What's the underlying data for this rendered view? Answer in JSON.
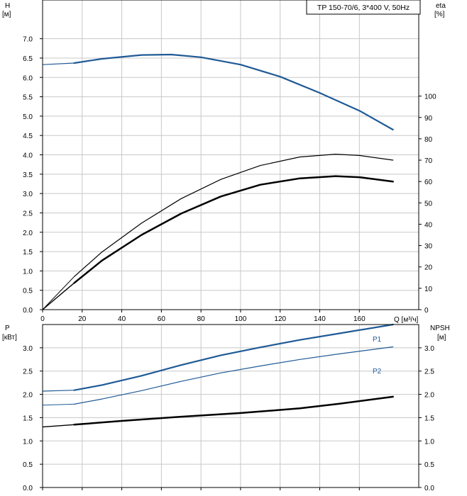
{
  "colors": {
    "blue": "#1f5a96",
    "black": "#000000",
    "grid": "#c8c8c8"
  },
  "chart_data": [
    {
      "type": "line",
      "title": "TP 150-70/6, 3*400 V, 50Hz",
      "ylabel_line1": "H",
      "ylabel_line2": "[м]",
      "y2label_line1": "eta",
      "y2label_line2": "[%]",
      "xlabel": "Q [м³/ч]",
      "xlim": [
        0,
        190
      ],
      "ylim": [
        0,
        8.0
      ],
      "y2lim": [
        0,
        145
      ],
      "xticks": [
        0,
        20,
        40,
        60,
        80,
        100,
        120,
        140,
        160
      ],
      "xtick_labels": [
        "0",
        "20",
        "40",
        "60",
        "80",
        "100",
        "120",
        "140",
        "160"
      ],
      "yticks": [
        0,
        0.5,
        1.0,
        1.5,
        2.0,
        2.5,
        3.0,
        3.5,
        4.0,
        4.5,
        5.0,
        5.5,
        6.0,
        6.5,
        7.0
      ],
      "ytick_labels": [
        "0.0",
        "0.5",
        "1.0",
        "1.5",
        "2.0",
        "2.5",
        "3.0",
        "3.5",
        "4.0",
        "4.5",
        "5.0",
        "5.5",
        "6.0",
        "6.5",
        "7.0"
      ],
      "y2ticks": [
        0,
        10,
        20,
        30,
        40,
        50,
        60,
        70,
        80,
        90,
        100
      ],
      "y2tick_labels": [
        "0",
        "10",
        "20",
        "30",
        "40",
        "50",
        "60",
        "70",
        "80",
        "90",
        "100"
      ],
      "series": [
        {
          "axis": "y",
          "color": "blue",
          "width": 2.2,
          "dashed_prefix_to": 16,
          "x": [
            0,
            16,
            30,
            50,
            65,
            80,
            100,
            120,
            140,
            160,
            177
          ],
          "y": [
            6.33,
            6.37,
            6.48,
            6.58,
            6.59,
            6.52,
            6.33,
            6.02,
            5.6,
            5.14,
            4.65
          ]
        },
        {
          "axis": "y2",
          "color": "black",
          "width": 1.2,
          "dashed_prefix_to": 16,
          "x": [
            0,
            16,
            30,
            50,
            70,
            90,
            110,
            130,
            148,
            160,
            177
          ],
          "y": [
            0,
            15.5,
            27,
            40.5,
            52,
            61,
            67.5,
            71.5,
            72.8,
            72.2,
            70
          ]
        },
        {
          "axis": "y2",
          "color": "black",
          "width": 2.5,
          "dashed_prefix_to": 16,
          "x": [
            0,
            16,
            30,
            50,
            70,
            90,
            110,
            130,
            148,
            160,
            177
          ],
          "y": [
            0,
            12.5,
            23,
            35,
            45,
            53,
            58.5,
            61.5,
            62.5,
            62,
            60
          ]
        }
      ]
    },
    {
      "type": "line",
      "ylabel_line1": "P",
      "ylabel_line2": "[кВт]",
      "y2label_line1": "NPSH",
      "y2label_line2": "[м]",
      "xlim": [
        0,
        190
      ],
      "ylim": [
        0,
        3.5
      ],
      "y2lim": [
        0,
        3.5
      ],
      "xticks": [
        0,
        20,
        40,
        60,
        80,
        100,
        120,
        140,
        160
      ],
      "yticks": [
        0,
        0.5,
        1.0,
        1.5,
        2.0,
        2.5,
        3.0
      ],
      "ytick_labels": [
        "0.0",
        "0.5",
        "1.0",
        "1.5",
        "2.0",
        "2.5",
        "3.0"
      ],
      "y2ticks": [
        0,
        0.5,
        1.0,
        1.5,
        2.0,
        2.5,
        3.0
      ],
      "y2tick_labels": [
        "0.0",
        "0.5",
        "1.0",
        "1.5",
        "2.0",
        "2.5",
        "3.0"
      ],
      "series": [
        {
          "name": "P1",
          "axis": "y",
          "color": "blue",
          "width": 2.2,
          "dashed_prefix_to": 16,
          "x": [
            0,
            16,
            30,
            50,
            70,
            90,
            110,
            130,
            150,
            177
          ],
          "y": [
            2.07,
            2.09,
            2.2,
            2.4,
            2.63,
            2.84,
            3.01,
            3.17,
            3.31,
            3.5
          ]
        },
        {
          "name": "P2",
          "axis": "y",
          "color": "blue",
          "width": 1.2,
          "dashed_prefix_to": 16,
          "x": [
            0,
            16,
            30,
            50,
            70,
            90,
            110,
            130,
            150,
            177
          ],
          "y": [
            1.77,
            1.79,
            1.9,
            2.08,
            2.28,
            2.46,
            2.61,
            2.75,
            2.87,
            3.02
          ]
        },
        {
          "axis": "y2",
          "color": "black",
          "width": 2.5,
          "dashed_prefix_to": 16,
          "x": [
            0,
            16,
            40,
            70,
            100,
            130,
            150,
            177
          ],
          "y": [
            1.3,
            1.35,
            1.43,
            1.52,
            1.6,
            1.7,
            1.8,
            1.95
          ]
        }
      ]
    }
  ]
}
